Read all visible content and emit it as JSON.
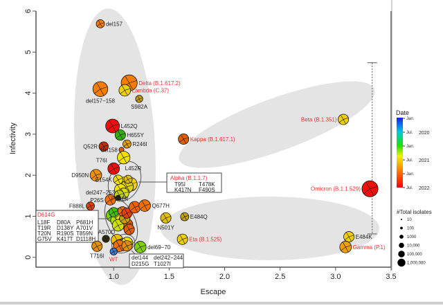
{
  "chart_data": {
    "type": "scatter",
    "title": "",
    "xlabel": "Escape",
    "ylabel": "Infectivity",
    "xlim": [
      0.3,
      3.5
    ],
    "ylim": [
      -0.24,
      6
    ],
    "xticks": [
      "1.0",
      "1.5",
      "2.0",
      "2.5",
      "3.0",
      "3.5"
    ],
    "yticks": [
      "0",
      "1",
      "2",
      "3",
      "4",
      "5",
      "6"
    ],
    "colors": {
      "orange": "#f57d00",
      "red": "#f20d0d",
      "yellow": "#f0e000",
      "lime": "#a8d800",
      "green": "#30c000",
      "darkorange": "#e25a00",
      "blue": "#3a7fd8"
    },
    "points": [
      {
        "label": "del157",
        "escape": 0.88,
        "infectivity": 5.69,
        "color": "#f57d00",
        "isolates": 300,
        "side": "right",
        "voc": false
      },
      {
        "label": "Delta (B.1.617.2)",
        "escape": 1.14,
        "infectivity": 4.25,
        "color": "#f57d00",
        "isolates": 1000000,
        "side": "right",
        "voc": true
      },
      {
        "label": "del157−158",
        "escape": 0.88,
        "infectivity": 4.1,
        "color": "#f57d00",
        "isolates": 300000,
        "side": "below",
        "voc": false
      },
      {
        "label": "Lambda (C.37)",
        "escape": 1.1,
        "infectivity": 4.07,
        "color": "#f0d000",
        "isolates": 10000,
        "side": "right",
        "voc": true
      },
      {
        "label": "S982A",
        "escape": 1.23,
        "infectivity": 3.86,
        "color": "#c8a000",
        "isolates": 100,
        "side": "below",
        "voc": false
      },
      {
        "label": "L452Q",
        "escape": 0.99,
        "infectivity": 3.2,
        "color": "#f20d0d",
        "isolates": 100000,
        "side": "right",
        "voc": false
      },
      {
        "label": "H655Y",
        "escape": 1.06,
        "infectivity": 2.98,
        "color": "#30b000",
        "isolates": 3000,
        "side": "right",
        "voc": false
      },
      {
        "label": "R246I",
        "escape": 1.12,
        "infectivity": 2.76,
        "color": "#e0a000",
        "isolates": 300,
        "side": "right",
        "voc": false
      },
      {
        "label": "Q52R",
        "escape": 0.91,
        "infectivity": 2.7,
        "color": "#c03000",
        "isolates": 1000,
        "side": "left",
        "voc": false
      },
      {
        "label": "del158",
        "escape": 1.07,
        "infectivity": 2.62,
        "color": "#e25a00",
        "isolates": 10,
        "side": "belowleft",
        "voc": false
      },
      {
        "label": "L452R",
        "escape": 1.09,
        "infectivity": 2.43,
        "color": "#f0e000",
        "isolates": 30000,
        "side": "belowright",
        "voc": false
      },
      {
        "label": "T76I",
        "escape": 1.0,
        "infectivity": 2.16,
        "color": "#f20d0d",
        "isolates": 10000,
        "side": "aboveleft",
        "voc": false
      },
      {
        "label": "D950N",
        "escape": 0.84,
        "infectivity": 2.0,
        "color": "#f09000",
        "isolates": 10000,
        "side": "left",
        "voc": false
      },
      {
        "label": "E154K",
        "escape": 1.04,
        "infectivity": 1.89,
        "color": "#f0e000",
        "isolates": 1000,
        "side": "belowleft",
        "voc": false
      },
      {
        "label": "del247−253",
        "escape": 1.04,
        "infectivity": 1.45,
        "color": "#202020",
        "isolates": 10,
        "side": "aboveleft",
        "voc": false
      },
      {
        "label": "P26S",
        "escape": 0.97,
        "infectivity": 1.4,
        "color": "#f07000",
        "isolates": 3000,
        "side": "left",
        "voc": false
      },
      {
        "label": "F888L",
        "escape": 0.79,
        "infectivity": 1.25,
        "color": "#e04000",
        "isolates": 300,
        "side": "left",
        "voc": false
      },
      {
        "label": "P681R",
        "escape": 1.19,
        "infectivity": 1.22,
        "color": "#f06000",
        "isolates": 10000,
        "side": "aboveleft",
        "voc": false
      },
      {
        "label": "Q677H",
        "escape": 1.28,
        "infectivity": 1.26,
        "color": "#f07000",
        "isolates": 10000,
        "side": "right",
        "voc": false
      },
      {
        "label": "N501Y",
        "escape": 1.47,
        "infectivity": 0.96,
        "color": "#e0c000",
        "isolates": 3000,
        "side": "below",
        "voc": false
      },
      {
        "label": "E484Q",
        "escape": 1.64,
        "infectivity": 0.99,
        "color": "#c8a000",
        "isolates": 300,
        "side": "right",
        "voc": false
      },
      {
        "label": "Eta (B.1.525)",
        "escape": 1.62,
        "infectivity": 0.44,
        "color": "#f0d000",
        "isolates": 3000,
        "side": "right",
        "voc": true
      },
      {
        "label": "A570D",
        "escape": 0.93,
        "infectivity": 0.45,
        "color": "#303000",
        "isolates": 100,
        "side": "aboveleft",
        "voc": false
      },
      {
        "label": "T716I",
        "escape": 0.85,
        "infectivity": 0.27,
        "color": "#e09000",
        "isolates": 3000,
        "side": "below",
        "voc": false
      },
      {
        "label": "WT",
        "escape": 1.0,
        "infectivity": 0.14,
        "color": "#3a7fd8",
        "isolates": 100,
        "side": "below",
        "voc": true
      },
      {
        "label": "del69−70",
        "escape": 1.24,
        "infectivity": 0.25,
        "color": "#80d000",
        "isolates": 10000,
        "side": "right",
        "voc": false
      },
      {
        "label": "Kappa (B.1.617.1)",
        "escape": 1.63,
        "infectivity": 2.88,
        "color": "#e06000",
        "isolates": 3000,
        "side": "right",
        "voc": true
      },
      {
        "label": "Beta (B.1.351)",
        "escape": 3.07,
        "infectivity": 3.36,
        "color": "#f0d000",
        "isolates": 3000,
        "side": "left",
        "voc": true
      },
      {
        "label": "Omicron (B.1.1.529)",
        "escape": 3.31,
        "infectivity": 1.67,
        "color": "#f20d0d",
        "isolates": 1000000,
        "side": "left",
        "voc": true
      },
      {
        "label": "E484K",
        "escape": 3.12,
        "infectivity": 0.5,
        "color": "#f0d000",
        "isolates": 3000,
        "side": "right",
        "voc": false
      },
      {
        "label": "Gamma (P.1)",
        "escape": 3.09,
        "infectivity": 0.25,
        "color": "#f0a000",
        "isolates": 10000,
        "side": "right",
        "voc": true
      }
    ],
    "cluster_points": [
      [
        1.09,
        1.8,
        "#f0e000",
        30000
      ],
      [
        1.15,
        1.78,
        "#f0d000",
        100000
      ],
      [
        1.12,
        1.72,
        "#e0d000",
        30000
      ],
      [
        1.06,
        1.65,
        "#f0e000",
        10000
      ],
      [
        1.09,
        1.56,
        "#d8e000",
        3000
      ],
      [
        1.05,
        1.52,
        "#c0d000",
        1000
      ],
      [
        1.13,
        1.9,
        "#e0c000",
        300
      ],
      [
        0.99,
        1.02,
        "#80d000",
        30000
      ],
      [
        1.03,
        0.9,
        "#a8e000",
        30000
      ],
      [
        1.06,
        1.05,
        "#f0e000",
        30000
      ],
      [
        1.09,
        0.85,
        "#60d000",
        10000
      ],
      [
        1.12,
        0.8,
        "#e06000",
        10000
      ],
      [
        1.04,
        0.78,
        "#d0e000",
        10000
      ],
      [
        1.1,
        0.95,
        "#c8a000",
        3000
      ],
      [
        1.14,
        0.68,
        "#e06000",
        3000
      ],
      [
        1.0,
        1.1,
        "#40c000",
        1000
      ],
      [
        1.08,
        1.12,
        "#f07000",
        1000
      ],
      [
        1.12,
        1.08,
        "#e04000",
        3000
      ],
      [
        1.03,
        0.42,
        "#f0c000",
        10000
      ],
      [
        1.08,
        0.3,
        "#f0d000",
        10000
      ],
      [
        1.12,
        0.35,
        "#f0e000",
        10000
      ],
      [
        1.05,
        0.28,
        "#f07000",
        10000
      ],
      [
        1.12,
        0.28,
        "#e09000",
        3000
      ]
    ],
    "error_bar": {
      "escape": 3.33,
      "low": 0.57,
      "high": 4.74
    },
    "boxes": [
      {
        "title": "Alpha (B.1.1.7)",
        "lines": [
          "T95I",
          "T478K",
          "K417N",
          "F490S"
        ]
      },
      {
        "title": "D614G",
        "lines": [
          "L18F",
          "D80A",
          "P681H",
          "T19R",
          "D138Y",
          "A701V",
          "T20N",
          "R190S",
          "T859N",
          "G75V",
          "K417T",
          "D1118H"
        ]
      },
      {
        "title": "",
        "lines": [
          "del144",
          "del242−244",
          "D215G",
          "T1027I"
        ]
      }
    ],
    "legend_date": {
      "title": "Date",
      "ticks": [
        "Jan.",
        "Jul.",
        "Jan.",
        "Jul.",
        "Jan.",
        "Jul."
      ],
      "years": [
        "2020",
        "2021",
        "2022"
      ]
    },
    "legend_size": {
      "title": "#Total isolates",
      "entries": [
        "10",
        "100",
        "1000",
        "10,000",
        "100,000",
        "1,000,000"
      ],
      "values": [
        10,
        100,
        1000,
        10000,
        100000,
        1000000
      ]
    }
  }
}
